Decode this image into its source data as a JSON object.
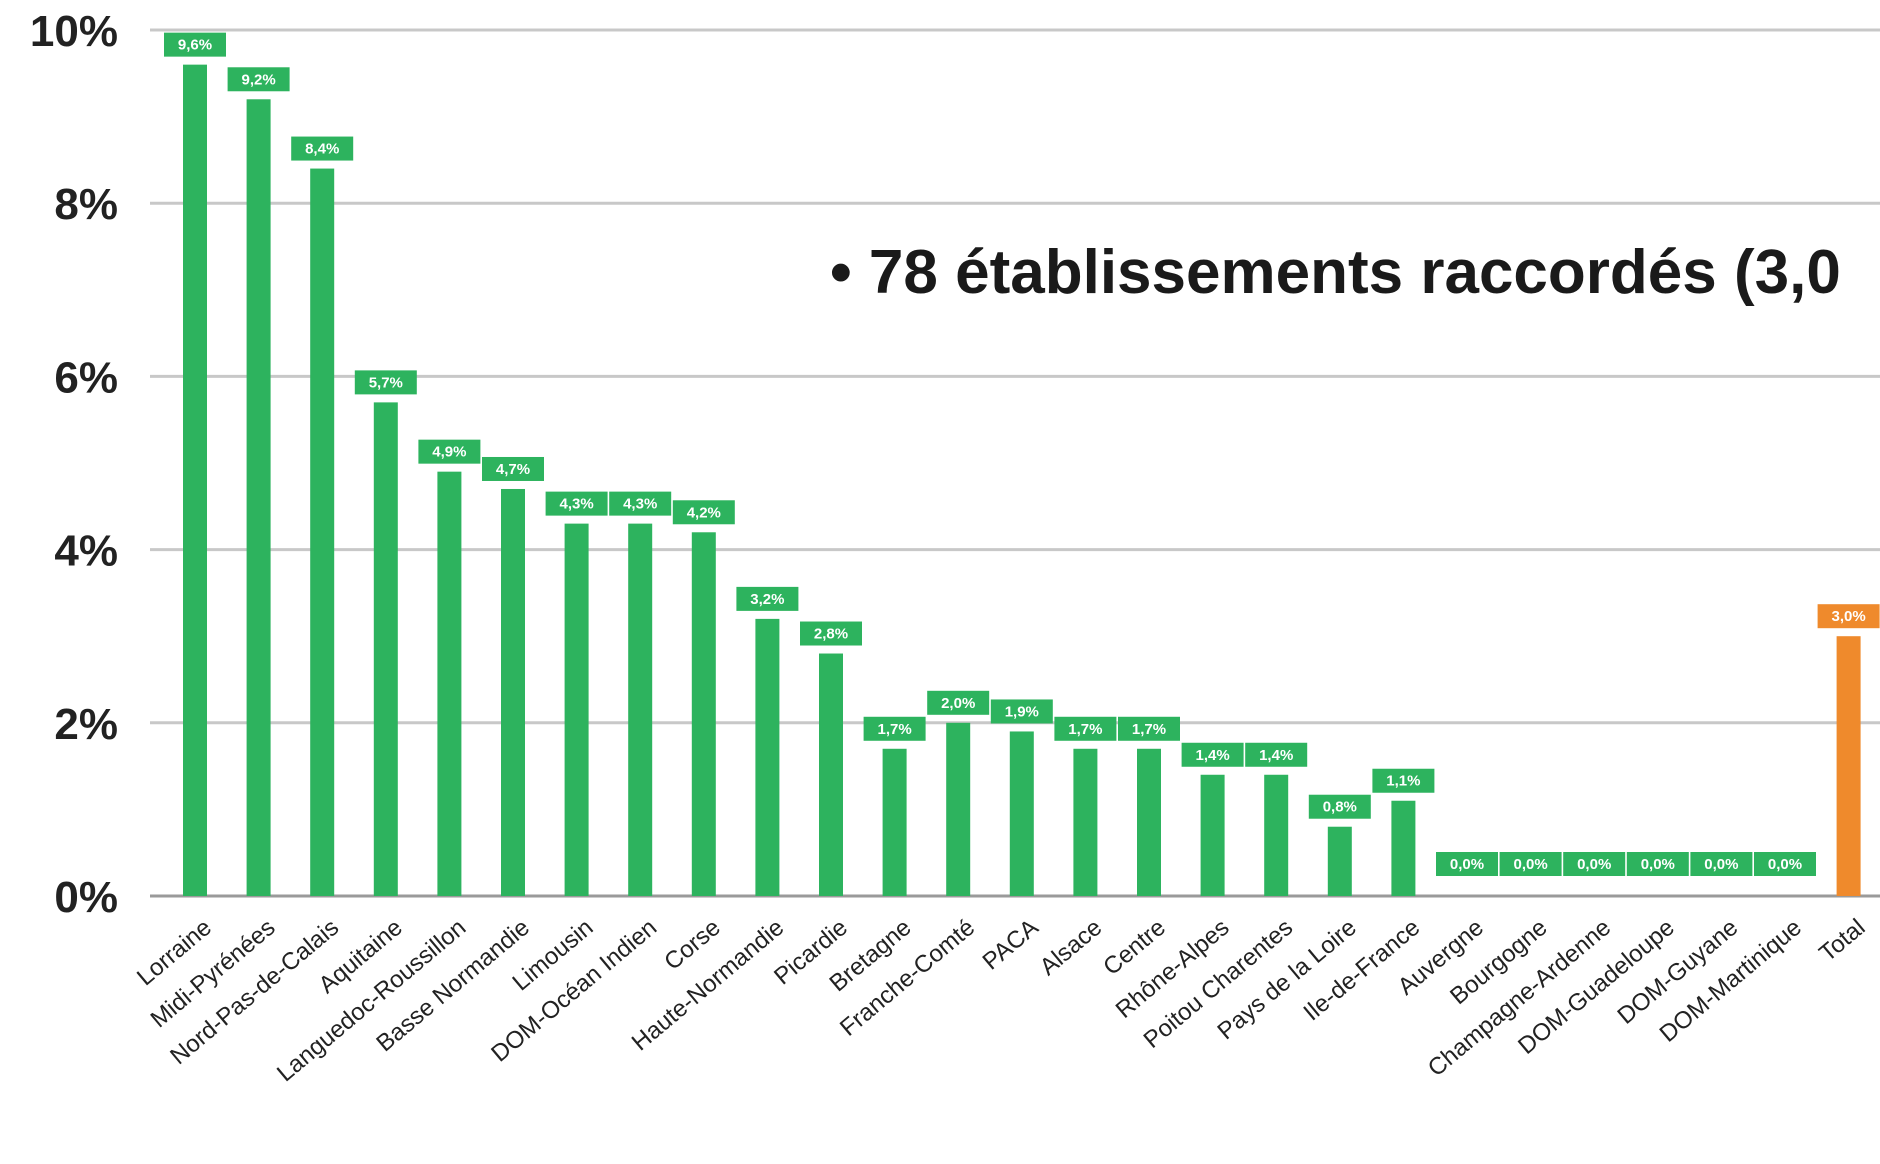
{
  "chart_data": {
    "type": "bar",
    "categories": [
      "Lorraine",
      "Midi-Pyrénées",
      "Nord-Pas-de-Calais",
      "Aquitaine",
      "Languedoc-Roussillon",
      "Basse Normandie",
      "Limousin",
      "DOM-Océan Indien",
      "Corse",
      "Haute-Normandie",
      "Picardie",
      "Bretagne",
      "Franche-Comté",
      "PACA",
      "Alsace",
      "Centre",
      "Rhône-Alpes",
      "Poitou Charentes",
      "Pays de la Loire",
      "Ile-de-France",
      "Auvergne",
      "Bourgogne",
      "Champagne-Ardenne",
      "DOM-Guadeloupe",
      "DOM-Guyane",
      "DOM-Martinique",
      "Total"
    ],
    "values": [
      9.6,
      9.2,
      8.4,
      5.7,
      4.9,
      4.7,
      4.3,
      4.3,
      4.2,
      3.2,
      2.8,
      1.7,
      2.0,
      1.9,
      1.7,
      1.7,
      1.4,
      1.4,
      0.8,
      1.1,
      0.0,
      0.0,
      0.0,
      0.0,
      0.0,
      0.0,
      3.0
    ],
    "data_labels": [
      "9,6%",
      "9,2%",
      "8,4%",
      "5,7%",
      "4,9%",
      "4,7%",
      "4,3%",
      "4,3%",
      "4,2%",
      "3,2%",
      "2,8%",
      "1,7%",
      "2,0%",
      "1,9%",
      "1,7%",
      "1,7%",
      "1,4%",
      "1,4%",
      "0,8%",
      "1,1%",
      "0,0%",
      "0,0%",
      "0,0%",
      "0,0%",
      "0,0%",
      "0,0%",
      "3,0%"
    ],
    "bar_colors": [
      "#2db35e",
      "#2db35e",
      "#2db35e",
      "#2db35e",
      "#2db35e",
      "#2db35e",
      "#2db35e",
      "#2db35e",
      "#2db35e",
      "#2db35e",
      "#2db35e",
      "#2db35e",
      "#2db35e",
      "#2db35e",
      "#2db35e",
      "#2db35e",
      "#2db35e",
      "#2db35e",
      "#2db35e",
      "#2db35e",
      "#2db35e",
      "#2db35e",
      "#2db35e",
      "#2db35e",
      "#2db35e",
      "#2db35e",
      "#ef8a2c"
    ],
    "y_ticks": [
      0,
      2,
      4,
      6,
      8,
      10
    ],
    "y_tick_labels": [
      "0%",
      "2%",
      "4%",
      "6%",
      "8%",
      "10%"
    ],
    "ylim": [
      0,
      10
    ],
    "grid": true,
    "title": "",
    "xlabel": "",
    "ylabel": "",
    "annotation": "•   78 établissements raccordés (3,0"
  },
  "colors": {
    "green": "#2db35e",
    "orange": "#ef8a2c",
    "grid": "#c8c8c8",
    "axis": "#9a9a9a",
    "text": "#222222"
  }
}
